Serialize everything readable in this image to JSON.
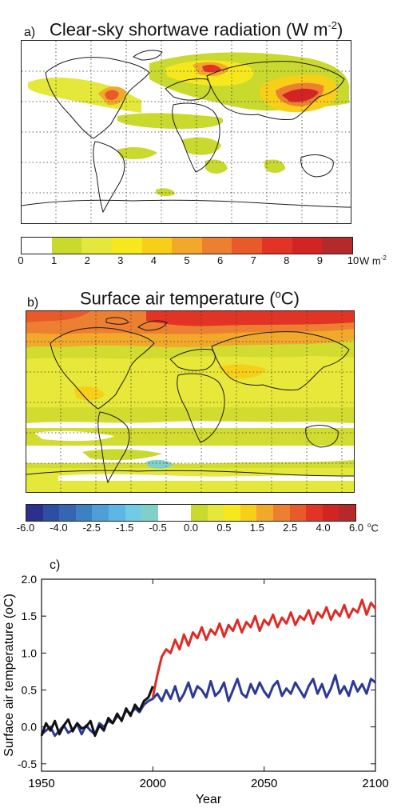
{
  "panel_a": {
    "letter": "a)",
    "title_main": "Clear-sky shortwave radiation (W m",
    "title_sup": "-2",
    "title_end": ")",
    "colorbar": {
      "colors": [
        "#ffffff",
        "#c9d92e",
        "#e4e83a",
        "#f7e81e",
        "#f8cf18",
        "#f2a82a",
        "#ed7f30",
        "#e85a2a",
        "#e23424",
        "#d32424",
        "#b42a2a"
      ],
      "ticks": [
        "0",
        "1",
        "2",
        "3",
        "4",
        "5",
        "6",
        "7",
        "8",
        "9",
        "10"
      ],
      "unit": "W m",
      "unit_sup": "-2"
    }
  },
  "panel_b": {
    "letter": "b)",
    "title_main": "Surface air temperature (",
    "title_sup": "o",
    "title_end": "C)",
    "colorbar": {
      "colors": [
        "#2c2f8c",
        "#2c4ea3",
        "#3566b3",
        "#3d80c4",
        "#4f9ed8",
        "#5db7e5",
        "#6fcbe6",
        "#7fd1c8",
        "#ffffff",
        "#ffffff",
        "#c9d92e",
        "#e4e83a",
        "#f7e81e",
        "#f8cf18",
        "#f2a82a",
        "#ed7f30",
        "#e85a2a",
        "#e23424",
        "#d32424",
        "#b42a2a"
      ],
      "ticks": [
        "-6.0",
        "-4.0",
        "-2.5",
        "-1.5",
        "-0.5",
        "0.0",
        "0.5",
        "1.5",
        "2.5",
        "4.0",
        "6.0"
      ],
      "unit_sup": "o",
      "unit": "C"
    }
  },
  "panel_c": {
    "letter": "c)"
  },
  "chart_data": {
    "type": "line",
    "title": "",
    "xlabel": "Year",
    "ylabel": "Surface air temperature (oC)",
    "xlim": [
      1950,
      2100
    ],
    "ylim": [
      -0.6,
      2.0
    ],
    "x_ticks": [
      1950,
      2000,
      2050,
      2100
    ],
    "y_ticks": [
      -0.5,
      0.0,
      0.5,
      1.0,
      1.5,
      2.0
    ],
    "x_tick_labels": [
      "1950",
      "2000",
      "2050",
      "2100"
    ],
    "y_tick_labels": [
      "-0.5",
      "0.0",
      "0.5",
      "1.0",
      "1.5",
      "2.0"
    ],
    "series": [
      {
        "color": "#2b3a92",
        "x": [
          1950,
          1952,
          1954,
          1956,
          1958,
          1960,
          1962,
          1964,
          1966,
          1968,
          1970,
          1972,
          1974,
          1976,
          1978,
          1980,
          1982,
          1984,
          1986,
          1988,
          1990,
          1992,
          1994,
          1996,
          1998,
          2000,
          2002,
          2004,
          2006,
          2008,
          2010,
          2012,
          2014,
          2016,
          2018,
          2020,
          2022,
          2024,
          2026,
          2028,
          2030,
          2032,
          2034,
          2036,
          2038,
          2040,
          2042,
          2044,
          2046,
          2048,
          2050,
          2052,
          2054,
          2056,
          2058,
          2060,
          2062,
          2064,
          2066,
          2068,
          2070,
          2072,
          2074,
          2076,
          2078,
          2080,
          2082,
          2084,
          2086,
          2088,
          2090,
          2092,
          2094,
          2096,
          2098,
          2100
        ],
        "y": [
          -0.1,
          -0.05,
          0.0,
          -0.12,
          -0.05,
          0.02,
          -0.08,
          -0.04,
          0.04,
          -0.1,
          0.02,
          -0.05,
          -0.1,
          0.05,
          0.0,
          0.08,
          0.05,
          0.15,
          0.1,
          0.22,
          0.18,
          0.25,
          0.2,
          0.3,
          0.35,
          0.38,
          0.45,
          0.35,
          0.5,
          0.38,
          0.55,
          0.35,
          0.45,
          0.6,
          0.4,
          0.55,
          0.5,
          0.4,
          0.62,
          0.42,
          0.48,
          0.6,
          0.35,
          0.5,
          0.65,
          0.45,
          0.4,
          0.58,
          0.45,
          0.6,
          0.48,
          0.4,
          0.55,
          0.62,
          0.42,
          0.52,
          0.45,
          0.6,
          0.5,
          0.4,
          0.55,
          0.65,
          0.45,
          0.58,
          0.4,
          0.52,
          0.7,
          0.45,
          0.55,
          0.42,
          0.62,
          0.48,
          0.58,
          0.45,
          0.65,
          0.6
        ]
      },
      {
        "color": "#e02a25",
        "x": [
          2000,
          2002,
          2004,
          2006,
          2008,
          2010,
          2012,
          2014,
          2016,
          2018,
          2020,
          2022,
          2024,
          2026,
          2028,
          2030,
          2032,
          2034,
          2036,
          2038,
          2040,
          2042,
          2044,
          2046,
          2048,
          2050,
          2052,
          2054,
          2056,
          2058,
          2060,
          2062,
          2064,
          2066,
          2068,
          2070,
          2072,
          2074,
          2076,
          2078,
          2080,
          2082,
          2084,
          2086,
          2088,
          2090,
          2092,
          2094,
          2096,
          2098,
          2100
        ],
        "y": [
          0.4,
          0.7,
          0.95,
          1.05,
          1.0,
          1.18,
          1.05,
          1.25,
          1.1,
          1.28,
          1.2,
          1.35,
          1.18,
          1.32,
          1.25,
          1.4,
          1.22,
          1.38,
          1.3,
          1.45,
          1.28,
          1.42,
          1.35,
          1.5,
          1.3,
          1.45,
          1.38,
          1.52,
          1.35,
          1.48,
          1.4,
          1.55,
          1.38,
          1.5,
          1.45,
          1.58,
          1.4,
          1.55,
          1.48,
          1.62,
          1.45,
          1.58,
          1.5,
          1.65,
          1.48,
          1.6,
          1.55,
          1.72,
          1.52,
          1.68,
          1.6
        ]
      },
      {
        "color": "#111111",
        "x": [
          1950,
          1952,
          1954,
          1956,
          1958,
          1960,
          1962,
          1964,
          1966,
          1968,
          1970,
          1972,
          1974,
          1976,
          1978,
          1980,
          1982,
          1984,
          1986,
          1988,
          1990,
          1992,
          1994,
          1996,
          1998,
          2000
        ],
        "y": [
          -0.12,
          0.05,
          -0.05,
          0.08,
          -0.1,
          0.02,
          0.1,
          -0.06,
          0.05,
          -0.02,
          0.0,
          0.08,
          -0.12,
          0.02,
          -0.05,
          0.12,
          0.05,
          0.18,
          0.08,
          0.25,
          0.15,
          0.3,
          0.22,
          0.35,
          0.4,
          0.55
        ]
      }
    ]
  }
}
